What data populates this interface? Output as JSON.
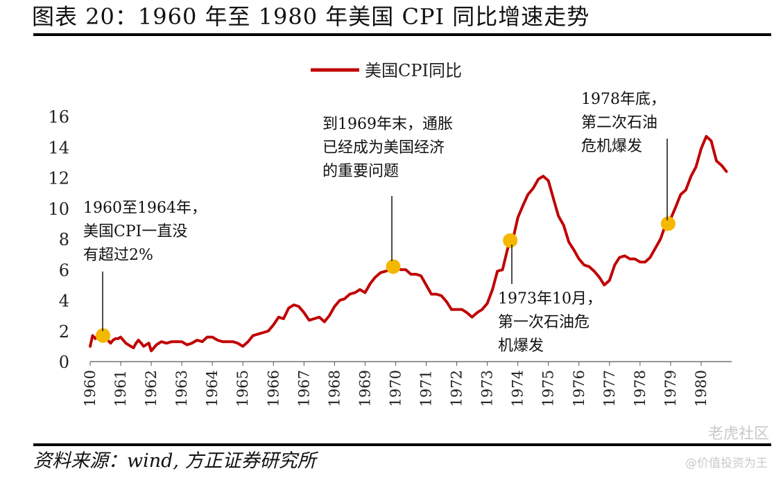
{
  "header": {
    "title": "图表 20：1960 年至 1980 年美国 CPI 同比增速走势"
  },
  "footer": {
    "source": "资料来源：wind, 方正证券研究所"
  },
  "watermark": {
    "line1": "老虎社区",
    "line2": "@价值投资为王"
  },
  "colors": {
    "line": "#c00000",
    "marker": "#f5b800",
    "text": "#222222"
  },
  "chart_data": {
    "type": "line",
    "title": "",
    "xlabel": "",
    "ylabel": "",
    "ylim": [
      0,
      16
    ],
    "yticks": [
      0,
      2,
      4,
      6,
      8,
      10,
      12,
      14,
      16
    ],
    "xlim": [
      1960,
      1981
    ],
    "xticks": [
      "1960",
      "1961",
      "1962",
      "1963",
      "1964",
      "1965",
      "1966",
      "1967",
      "1968",
      "1969",
      "1970",
      "1971",
      "1972",
      "1973",
      "1974",
      "1975",
      "1976",
      "1977",
      "1978",
      "1979",
      "1980"
    ],
    "grid": false,
    "legend": {
      "position": "top-center",
      "entries": [
        "美国CPI同比"
      ]
    },
    "series": [
      {
        "name": "美国CPI同比",
        "x": [
          1960.0,
          1960.08,
          1960.17,
          1960.25,
          1960.33,
          1960.42,
          1960.5,
          1960.58,
          1960.67,
          1960.75,
          1960.83,
          1960.92,
          1961.0,
          1961.08,
          1961.17,
          1961.25,
          1961.33,
          1961.42,
          1961.5,
          1961.58,
          1961.67,
          1961.75,
          1961.83,
          1961.92,
          1962.0,
          1962.17,
          1962.33,
          1962.5,
          1962.67,
          1962.83,
          1963.0,
          1963.17,
          1963.33,
          1963.5,
          1963.67,
          1963.83,
          1964.0,
          1964.17,
          1964.33,
          1964.5,
          1964.67,
          1964.83,
          1965.0,
          1965.17,
          1965.33,
          1965.5,
          1965.67,
          1965.83,
          1966.0,
          1966.17,
          1966.33,
          1966.5,
          1966.67,
          1966.83,
          1967.0,
          1967.17,
          1967.33,
          1967.5,
          1967.67,
          1967.83,
          1968.0,
          1968.17,
          1968.33,
          1968.5,
          1968.67,
          1968.83,
          1969.0,
          1969.17,
          1969.33,
          1969.5,
          1969.67,
          1969.83,
          1970.0,
          1970.17,
          1970.33,
          1970.5,
          1970.67,
          1970.83,
          1971.0,
          1971.17,
          1971.33,
          1971.5,
          1971.67,
          1971.83,
          1972.0,
          1972.17,
          1972.33,
          1972.5,
          1972.67,
          1972.83,
          1973.0,
          1973.17,
          1973.33,
          1973.5,
          1973.67,
          1973.83,
          1974.0,
          1974.17,
          1974.33,
          1974.5,
          1974.67,
          1974.83,
          1975.0,
          1975.17,
          1975.33,
          1975.5,
          1975.67,
          1975.83,
          1976.0,
          1976.17,
          1976.33,
          1976.5,
          1976.67,
          1976.83,
          1977.0,
          1977.17,
          1977.33,
          1977.5,
          1977.67,
          1977.83,
          1978.0,
          1978.17,
          1978.33,
          1978.5,
          1978.67,
          1978.83,
          1979.0,
          1979.17,
          1979.33,
          1979.5,
          1979.67,
          1979.83,
          1980.0,
          1980.17,
          1980.33,
          1980.5,
          1980.67,
          1980.83
        ],
        "values": [
          1.0,
          1.7,
          1.5,
          1.7,
          1.8,
          1.8,
          1.5,
          1.4,
          1.2,
          1.4,
          1.5,
          1.5,
          1.6,
          1.4,
          1.2,
          1.1,
          1.0,
          0.9,
          1.2,
          1.4,
          1.2,
          1.0,
          1.1,
          1.2,
          0.7,
          1.1,
          1.3,
          1.2,
          1.3,
          1.3,
          1.3,
          1.1,
          1.2,
          1.4,
          1.3,
          1.6,
          1.6,
          1.4,
          1.3,
          1.3,
          1.3,
          1.2,
          1.0,
          1.3,
          1.7,
          1.8,
          1.9,
          2.0,
          2.4,
          2.9,
          2.8,
          3.5,
          3.7,
          3.6,
          3.2,
          2.7,
          2.8,
          2.9,
          2.6,
          3.0,
          3.6,
          4.0,
          4.1,
          4.4,
          4.5,
          4.7,
          4.5,
          5.1,
          5.5,
          5.8,
          5.9,
          6.0,
          6.1,
          6.0,
          6.0,
          5.7,
          5.7,
          5.6,
          5.0,
          4.4,
          4.4,
          4.3,
          3.9,
          3.4,
          3.4,
          3.4,
          3.2,
          2.9,
          3.2,
          3.4,
          3.8,
          4.7,
          5.9,
          6.0,
          7.4,
          7.9,
          9.4,
          10.2,
          10.9,
          11.3,
          11.9,
          12.1,
          11.8,
          10.6,
          9.5,
          8.9,
          7.8,
          7.3,
          6.7,
          6.3,
          6.2,
          5.9,
          5.5,
          5.0,
          5.3,
          6.3,
          6.8,
          6.9,
          6.7,
          6.7,
          6.5,
          6.5,
          6.8,
          7.4,
          8.0,
          8.9,
          9.3,
          10.1,
          10.9,
          11.2,
          12.1,
          12.7,
          13.9,
          14.7,
          14.4,
          13.1,
          12.8,
          12.4
        ]
      }
    ],
    "markers": [
      {
        "x": 1960.42,
        "y": 1.7
      },
      {
        "x": 1969.92,
        "y": 6.2
      },
      {
        "x": 1973.75,
        "y": 7.9
      },
      {
        "x": 1978.92,
        "y": 9.0
      }
    ],
    "annotations": [
      {
        "id": "ann1",
        "lines": [
          "1960至1964年，",
          "美国CPI一直没",
          "有超过2%"
        ]
      },
      {
        "id": "ann2",
        "lines": [
          "到1969年末，通胀",
          "已经成为美国经济",
          "的重要问题"
        ]
      },
      {
        "id": "ann3",
        "lines": [
          "1973年10月，",
          "第一次石油危",
          "机爆发"
        ]
      },
      {
        "id": "ann4",
        "lines": [
          "1978年底，",
          "第二次石油",
          "危机爆发"
        ]
      }
    ]
  }
}
